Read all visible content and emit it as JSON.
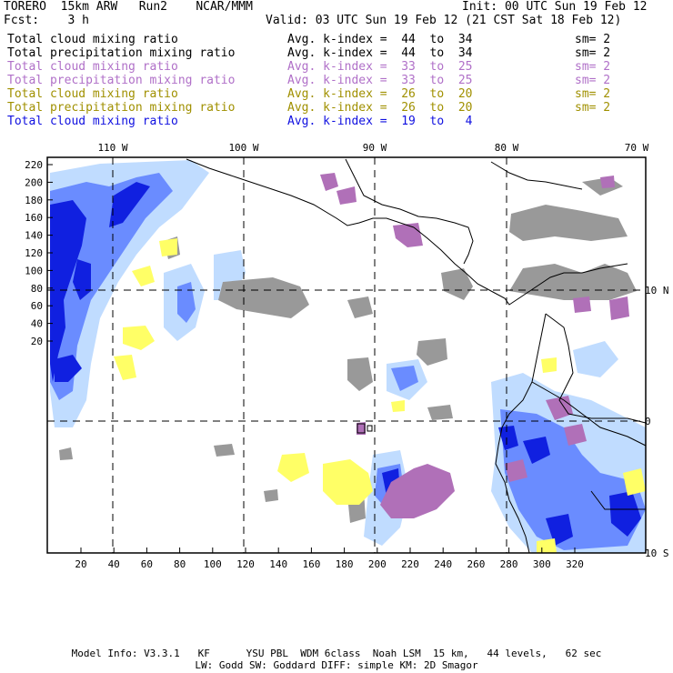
{
  "header": {
    "model": "TORERO  15km ARW   Run2    NCAR/MMM",
    "init": "Init: 00 UTC Sun 19 Feb 12",
    "fcst": "Fcst:    3 h",
    "valid": "Valid: 03 UTC Sun 19 Feb 12 (21 CST Sat 18 Feb 12)"
  },
  "legend": [
    {
      "field": "Total cloud mixing ratio",
      "index": "Avg. k-index =  44  to  34",
      "sm": "sm= 2",
      "color": "#000000"
    },
    {
      "field": "Total precipitation mixing ratio",
      "index": "Avg. k-index =  44  to  34",
      "sm": "sm= 2",
      "color": "#000000"
    },
    {
      "field": "Total cloud mixing ratio",
      "index": "Avg. k-index =  33  to  25",
      "sm": "sm= 2",
      "color": "#b070c8"
    },
    {
      "field": "Total precipitation mixing ratio",
      "index": "Avg. k-index =  33  to  25",
      "sm": "sm= 2",
      "color": "#b070c8"
    },
    {
      "field": "Total cloud mixing ratio",
      "index": "Avg. k-index =  26  to  20",
      "sm": "sm= 2",
      "color": "#a09000"
    },
    {
      "field": "Total precipitation mixing ratio",
      "index": "Avg. k-index =  26  to  20",
      "sm": "sm= 2",
      "color": "#a09000"
    },
    {
      "field": "Total cloud mixing ratio",
      "index": "Avg. k-index =  19  to   4",
      "sm": "",
      "color": "#1010e0"
    }
  ],
  "map": {
    "top_lon_labels": [
      "110 W",
      "100 W",
      "90 W",
      "80 W",
      "70 W"
    ],
    "right_lat_labels": [
      "10 N",
      "0",
      "10 S"
    ],
    "left_ticks": [
      "220",
      "200",
      "180",
      "160",
      "140",
      "120",
      "100",
      "80",
      "60",
      "40",
      "20"
    ],
    "bottom_ticks": [
      "20",
      "40",
      "60",
      "80",
      "100",
      "120",
      "140",
      "160",
      "180",
      "200",
      "220",
      "240",
      "260",
      "280",
      "300",
      "320"
    ],
    "colors": {
      "high_cloud": "#999999",
      "mid_cloud": "#b070b8",
      "low_cloud": "#ffff66",
      "precip_light": "#c0dcff",
      "precip_mid": "#6a8cff",
      "precip_heavy": "#1020e0"
    }
  },
  "footer": {
    "line1": "Model Info: V3.3.1   KF      YSU PBL  WDM 6class  Noah LSM  15 km,   44 levels,   62 sec",
    "line2": "LW: Godd SW: Goddard DIFF: simple KM: 2D Smagor"
  }
}
